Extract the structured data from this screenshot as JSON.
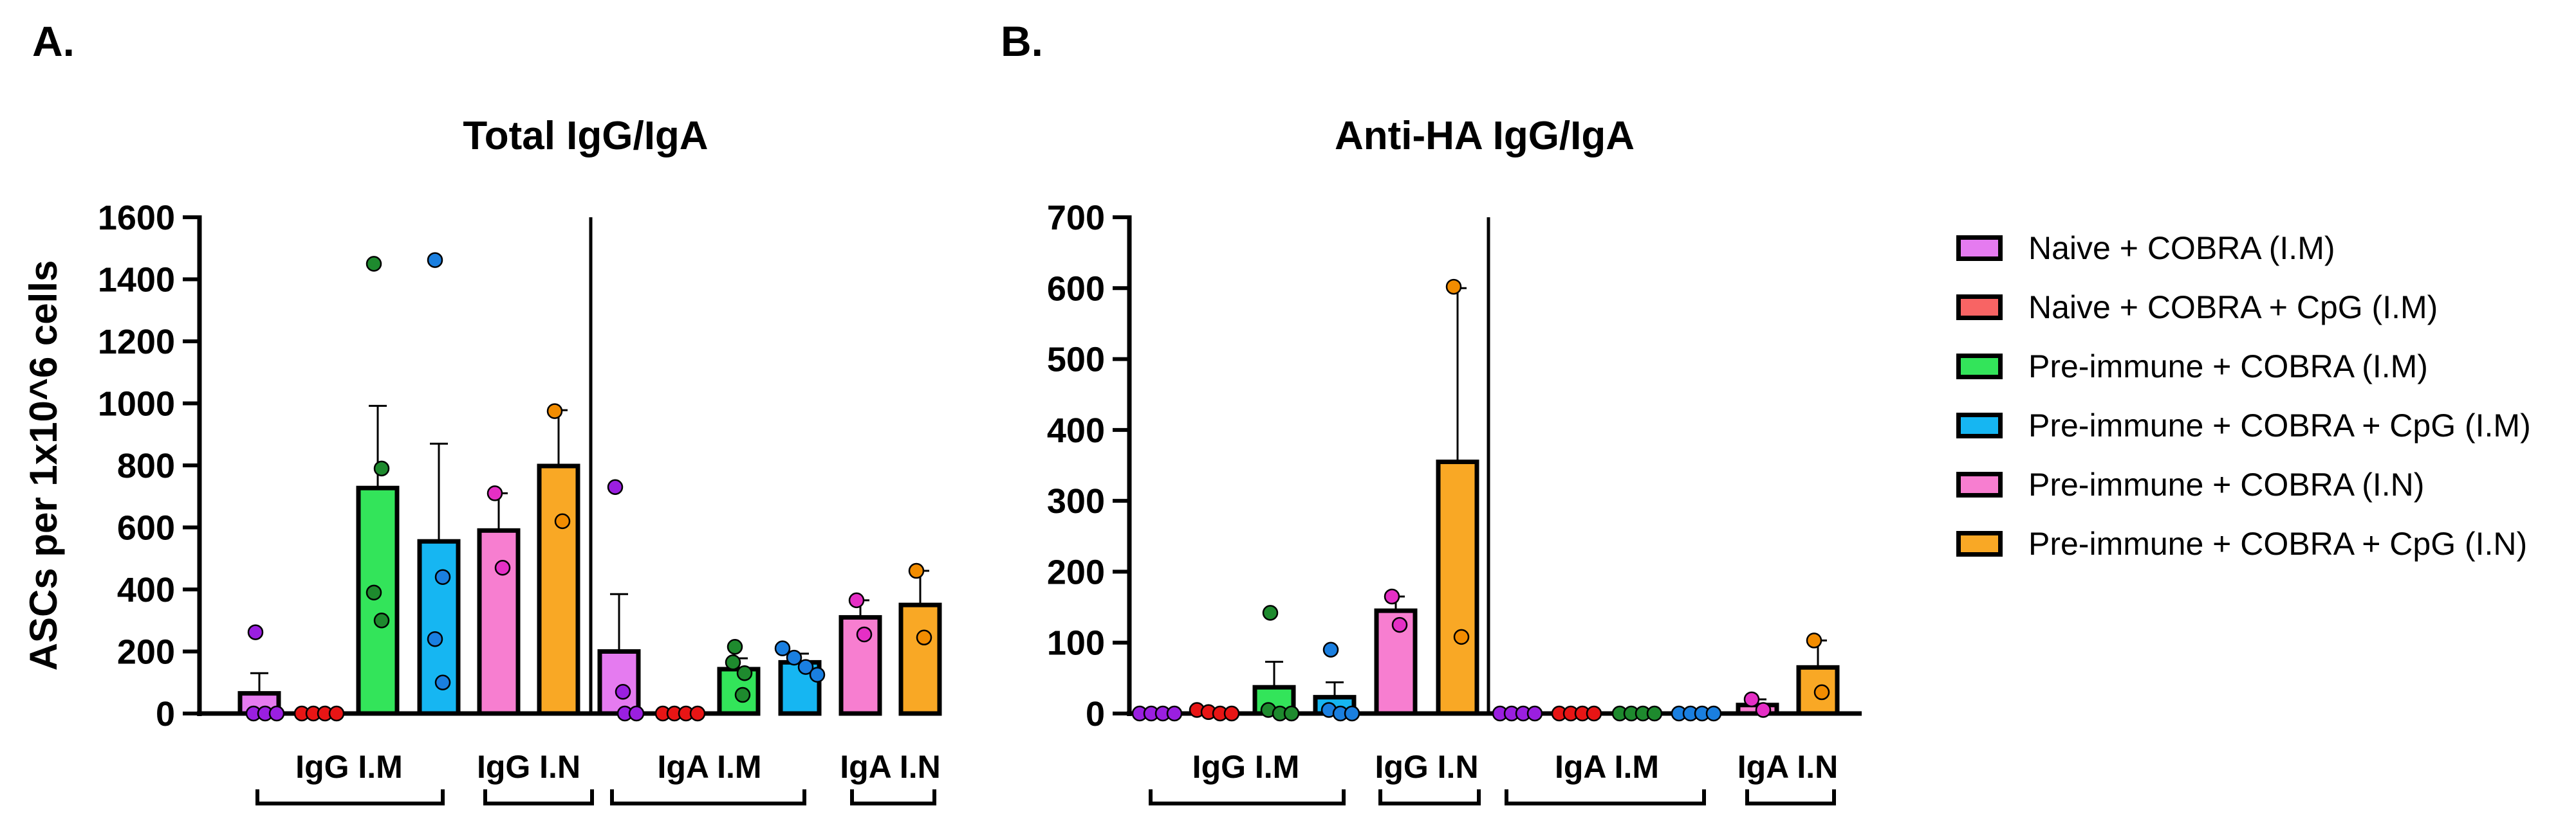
{
  "panels": {
    "a_label": "A.",
    "b_label": "B."
  },
  "legend": [
    {
      "name": "Naive + COBRA (I.M)",
      "color": "#e57bf0"
    },
    {
      "name": "Naive + COBRA + CpG (I.M)",
      "color": "#f86464"
    },
    {
      "name": "Pre-immune + COBRA (I.M)",
      "color": "#33e45a"
    },
    {
      "name": "Pre-immune + COBRA + CpG (I.M)",
      "color": "#16b6f2"
    },
    {
      "name": "Pre-immune + COBRA (I.N)",
      "color": "#f77ed0"
    },
    {
      "name": "Pre-immune + COBRA + CpG (I.N)",
      "color": "#f9a825"
    }
  ],
  "point_colors": [
    "#9a1fe0",
    "#e81515",
    "#1e8a2e",
    "#1a7fe0",
    "#e52fc5",
    "#f28c00"
  ],
  "chart_data": [
    {
      "type": "bar",
      "title": "Total IgG/IgA",
      "ylabel": "ASCs per 1x10^6 cells",
      "xlabel": "",
      "ylim": [
        0,
        1600
      ],
      "yticks": [
        0,
        200,
        400,
        600,
        800,
        1000,
        1200,
        1400,
        1600
      ],
      "group_labels": [
        "IgG I.M",
        "IgG I.N",
        "IgA I.M",
        "IgA I.N"
      ],
      "bars": [
        {
          "group": "IgG I.M",
          "series": 0,
          "value": 65,
          "sem": 65,
          "points": [
            262,
            0,
            0,
            0
          ]
        },
        {
          "group": "IgG I.M",
          "series": 1,
          "value": 0,
          "sem": 0,
          "points": [
            0,
            0,
            0,
            0
          ]
        },
        {
          "group": "IgG I.M",
          "series": 2,
          "value": 727,
          "sem": 265,
          "points": [
            1450,
            790,
            390,
            300
          ]
        },
        {
          "group": "IgG I.M",
          "series": 3,
          "value": 555,
          "sem": 315,
          "points": [
            1462,
            440,
            240,
            100
          ]
        },
        {
          "group": "IgG I.N",
          "series": 4,
          "value": 590,
          "sem": 120,
          "points": [
            710,
            470
          ]
        },
        {
          "group": "IgG I.N",
          "series": 5,
          "value": 798,
          "sem": 180,
          "points": [
            975,
            620
          ]
        },
        {
          "group": "IgA I.M",
          "series": 0,
          "value": 200,
          "sem": 185,
          "points": [
            730,
            70,
            0,
            0
          ]
        },
        {
          "group": "IgA I.M",
          "series": 1,
          "value": 0,
          "sem": 0,
          "points": [
            0,
            0,
            0,
            0
          ]
        },
        {
          "group": "IgA I.M",
          "series": 2,
          "value": 143,
          "sem": 35,
          "points": [
            215,
            165,
            130,
            60
          ]
        },
        {
          "group": "IgA I.M",
          "series": 3,
          "value": 165,
          "sem": 28,
          "points": [
            210,
            180,
            150,
            125
          ]
        },
        {
          "group": "IgA I.N",
          "series": 4,
          "value": 310,
          "sem": 55,
          "points": [
            365,
            255
          ]
        },
        {
          "group": "IgA I.N",
          "series": 5,
          "value": 350,
          "sem": 110,
          "points": [
            460,
            245
          ]
        }
      ]
    },
    {
      "type": "bar",
      "title": "Anti-HA IgG/IgA",
      "ylabel": "",
      "xlabel": "",
      "ylim": [
        0,
        700
      ],
      "yticks": [
        0,
        100,
        200,
        300,
        400,
        500,
        600,
        700
      ],
      "group_labels": [
        "IgG I.M",
        "IgG I.N",
        "IgA I.M",
        "IgA I.N"
      ],
      "bars": [
        {
          "group": "IgG I.M",
          "series": 0,
          "value": 0,
          "sem": 0,
          "points": [
            0,
            0,
            0,
            0
          ]
        },
        {
          "group": "IgG I.M",
          "series": 1,
          "value": 3,
          "sem": 2,
          "points": [
            5,
            2,
            0,
            0
          ]
        },
        {
          "group": "IgG I.M",
          "series": 2,
          "value": 37,
          "sem": 36,
          "points": [
            142,
            5,
            0,
            0
          ]
        },
        {
          "group": "IgG I.M",
          "series": 3,
          "value": 23,
          "sem": 21,
          "points": [
            90,
            5,
            0,
            0
          ]
        },
        {
          "group": "IgG I.N",
          "series": 4,
          "value": 145,
          "sem": 20,
          "points": [
            165,
            125
          ]
        },
        {
          "group": "IgG I.N",
          "series": 5,
          "value": 355,
          "sem": 245,
          "points": [
            602,
            108
          ]
        },
        {
          "group": "IgA I.M",
          "series": 0,
          "value": 0,
          "sem": 0,
          "points": [
            0,
            0,
            0,
            0
          ]
        },
        {
          "group": "IgA I.M",
          "series": 1,
          "value": 0,
          "sem": 0,
          "points": [
            0,
            0,
            0,
            0
          ]
        },
        {
          "group": "IgA I.M",
          "series": 2,
          "value": 0,
          "sem": 0,
          "points": [
            0,
            0,
            0,
            0
          ]
        },
        {
          "group": "IgA I.M",
          "series": 3,
          "value": 0,
          "sem": 0,
          "points": [
            0,
            0,
            0,
            0
          ]
        },
        {
          "group": "IgA I.N",
          "series": 4,
          "value": 12,
          "sem": 8,
          "points": [
            20,
            5
          ]
        },
        {
          "group": "IgA I.N",
          "series": 5,
          "value": 65,
          "sem": 38,
          "points": [
            103,
            30
          ]
        }
      ]
    }
  ]
}
